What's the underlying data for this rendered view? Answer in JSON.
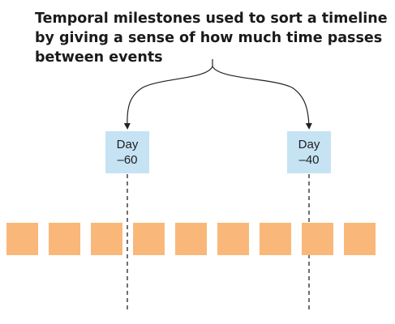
{
  "caption": {
    "lines": [
      "Temporal milestones used to sort a timeline",
      "by giving a sense of how much time passes",
      "between events"
    ]
  },
  "milestones": [
    {
      "line1": "Day",
      "line2": "–60"
    },
    {
      "line1": "Day",
      "line2": "–40"
    }
  ],
  "events": {
    "count": 9
  },
  "colors": {
    "event_fill": "#f9b87a",
    "milestone_fill": "#c6e3f4",
    "line": "#222222"
  }
}
